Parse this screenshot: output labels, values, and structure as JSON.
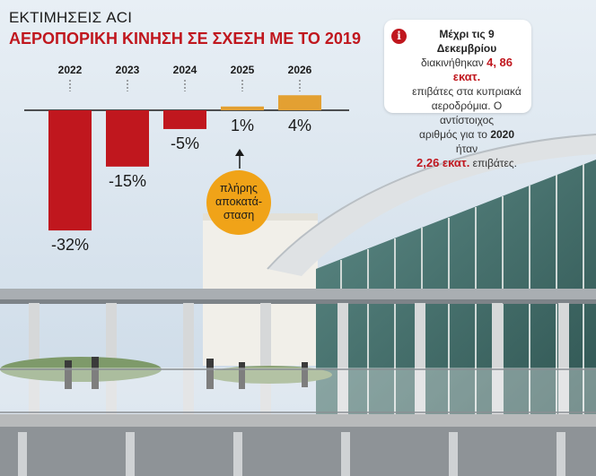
{
  "header": {
    "kicker": "ΕΚΤΙΜΗΣΕΙΣ ACI",
    "title": "ΑΕΡΟΠΟΡΙΚΗ ΚΙΝΗΣΗ ΣΕ ΣΧΕΣΗ ΜΕ ΤΟ 2019"
  },
  "info": {
    "icon": "info-icon",
    "line1": "Μέχρι τις 9 Δεκεμβρίου",
    "line2_pre": "διακινήθηκαν",
    "line2_value": "4, 86 εκατ.",
    "line3": "επιβάτες στα κυπριακά",
    "line4": "αεροδρόμια. Ο αντίστοιχος",
    "line5_pre": "αριθμός για το",
    "line5_year": "2020",
    "line5_post": "ήταν",
    "line6_value": "2,26 εκατ.",
    "line6_post": "επιβάτες."
  },
  "callout": {
    "line1": "πλήρης",
    "line2": "αποκατά-",
    "line3": "σταση"
  },
  "colors": {
    "negative": "#c0171e",
    "positive": "#e3a032",
    "title": "#c0171e",
    "callout": "#f0a318"
  },
  "chart_data": {
    "type": "bar",
    "categories": [
      "2022",
      "2023",
      "2024",
      "2025",
      "2026"
    ],
    "values": [
      -32,
      -15,
      -5,
      1,
      4
    ],
    "labels": [
      "-32%",
      "-15%",
      "-5%",
      "1%",
      "4%"
    ],
    "unit": "%",
    "xlabel": "",
    "ylabel": "",
    "grid": false
  }
}
